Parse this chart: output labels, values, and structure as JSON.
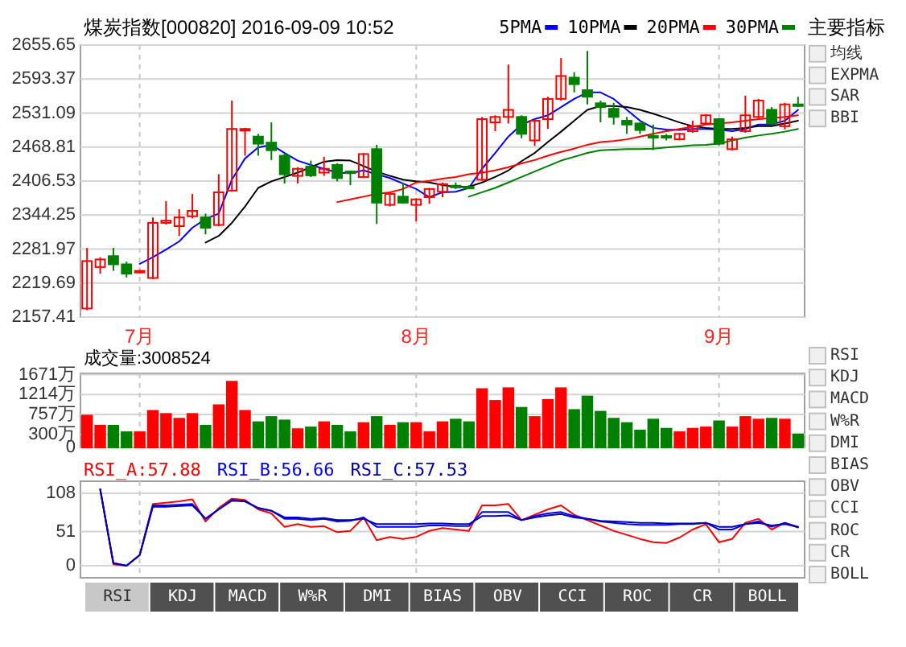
{
  "chart_data": [
    {
      "type": "candlestick",
      "title": "煤炭指数[000820] 2016-09-09 10:52",
      "categories": [
        null,
        null,
        null,
        null,
        "7月",
        null,
        null,
        null,
        null,
        null,
        null,
        null,
        null,
        null,
        null,
        null,
        null,
        null,
        null,
        null,
        null,
        null,
        null,
        null,
        null,
        "8月",
        null,
        null,
        null,
        null,
        null,
        null,
        null,
        null,
        null,
        null,
        null,
        null,
        null,
        null,
        null,
        null,
        null,
        null,
        null,
        null,
        null,
        null,
        "9月",
        null,
        null,
        null,
        null,
        null,
        null
      ],
      "ohlc": [
        [
          2173,
          2284,
          2170,
          2260
        ],
        [
          2249,
          2267,
          2237,
          2263
        ],
        [
          2269,
          2284,
          2242,
          2254
        ],
        [
          2254,
          2259,
          2230,
          2237
        ],
        [
          2239,
          2244,
          2237,
          2242
        ],
        [
          2229,
          2340,
          2227,
          2330
        ],
        [
          2330,
          2370,
          2327,
          2334
        ],
        [
          2324,
          2355,
          2306,
          2340
        ],
        [
          2342,
          2383,
          2338,
          2352
        ],
        [
          2340,
          2347,
          2309,
          2321
        ],
        [
          2326,
          2419,
          2324,
          2386
        ],
        [
          2389,
          2554,
          2387,
          2502
        ],
        [
          2500,
          2504,
          2453,
          2502
        ],
        [
          2488,
          2493,
          2453,
          2475
        ],
        [
          2477,
          2514,
          2445,
          2463
        ],
        [
          2453,
          2458,
          2402,
          2419
        ],
        [
          2416,
          2432,
          2402,
          2429
        ],
        [
          2433,
          2444,
          2414,
          2417
        ],
        [
          2422,
          2451,
          2416,
          2429
        ],
        [
          2436,
          2439,
          2406,
          2412
        ],
        [
          2424,
          2426,
          2399,
          2421
        ],
        [
          2414,
          2458,
          2412,
          2456
        ],
        [
          2465,
          2473,
          2328,
          2367
        ],
        [
          2363,
          2385,
          2360,
          2383
        ],
        [
          2378,
          2404,
          2365,
          2367
        ],
        [
          2363,
          2375,
          2333,
          2373
        ],
        [
          2377,
          2394,
          2365,
          2392
        ],
        [
          2387,
          2404,
          2377,
          2401
        ],
        [
          2398,
          2404,
          2392,
          2396
        ],
        [
          2396,
          2399,
          2392,
          2394
        ],
        [
          2409,
          2524,
          2407,
          2520
        ],
        [
          2514,
          2527,
          2498,
          2524
        ],
        [
          2524,
          2620,
          2512,
          2537
        ],
        [
          2524,
          2527,
          2485,
          2493
        ],
        [
          2481,
          2520,
          2471,
          2517
        ],
        [
          2520,
          2561,
          2502,
          2557
        ],
        [
          2557,
          2632,
          2554,
          2599
        ],
        [
          2596,
          2606,
          2569,
          2584
        ],
        [
          2573,
          2645,
          2547,
          2561
        ],
        [
          2549,
          2554,
          2514,
          2542
        ],
        [
          2539,
          2550,
          2510,
          2524
        ],
        [
          2517,
          2524,
          2493,
          2510
        ],
        [
          2512,
          2514,
          2493,
          2500
        ],
        [
          2489,
          2510,
          2463,
          2487
        ],
        [
          2489,
          2493,
          2481,
          2487
        ],
        [
          2483,
          2495,
          2481,
          2493
        ],
        [
          2498,
          2517,
          2495,
          2507
        ],
        [
          2512,
          2529,
          2510,
          2527
        ],
        [
          2520,
          2522,
          2472,
          2475
        ],
        [
          2465,
          2488,
          2463,
          2483
        ],
        [
          2498,
          2563,
          2495,
          2527
        ],
        [
          2524,
          2557,
          2520,
          2554
        ],
        [
          2537,
          2542,
          2510,
          2512
        ],
        [
          2507,
          2550,
          2501,
          2547
        ],
        [
          2547,
          2561,
          2542,
          2544
        ]
      ],
      "series": [
        {
          "name": "5PMA",
          "type": "line",
          "color": "#0000ff",
          "values": [
            null,
            null,
            null,
            null,
            2255,
            2267,
            2281,
            2296,
            2321,
            2337,
            2347,
            2409,
            2448,
            2468,
            2473,
            2458,
            2444,
            2436,
            2429,
            2422,
            2421,
            2426,
            2419,
            2412,
            2402,
            2392,
            2377,
            2386,
            2387,
            2394,
            2429,
            2458,
            2488,
            2510,
            2520,
            2527,
            2542,
            2557,
            2569,
            2569,
            2557,
            2537,
            2517,
            2504,
            2501,
            2500,
            2502,
            2502,
            2501,
            2498,
            2502,
            2510,
            2510,
            2517,
            2537
          ]
        },
        {
          "name": "10PMA",
          "type": "line",
          "color": "#000000",
          "values": [
            null,
            null,
            null,
            null,
            null,
            null,
            null,
            null,
            null,
            2294,
            2306,
            2330,
            2360,
            2394,
            2406,
            2414,
            2422,
            2432,
            2442,
            2445,
            2444,
            2434,
            2424,
            2416,
            2409,
            2406,
            2404,
            2399,
            2396,
            2396,
            2404,
            2414,
            2426,
            2443,
            2458,
            2478,
            2497,
            2517,
            2537,
            2544,
            2544,
            2542,
            2537,
            2530,
            2522,
            2514,
            2507,
            2504,
            2502,
            2502,
            2504,
            2507,
            2507,
            2512,
            2517
          ]
        },
        {
          "name": "20PMA",
          "type": "line",
          "color": "#ff0000",
          "values": [
            null,
            null,
            null,
            null,
            null,
            null,
            null,
            null,
            null,
            null,
            null,
            null,
            null,
            null,
            null,
            null,
            null,
            null,
            null,
            2368,
            2373,
            2378,
            2383,
            2386,
            2392,
            2404,
            2407,
            2411,
            2414,
            2419,
            2422,
            2426,
            2432,
            2439,
            2445,
            2453,
            2460,
            2466,
            2473,
            2478,
            2480,
            2483,
            2488,
            2493,
            2498,
            2502,
            2506,
            2510,
            2512,
            2514,
            2517,
            2520,
            2522,
            2524,
            2527
          ]
        },
        {
          "name": "30PMA",
          "type": "line",
          "color": "#008000",
          "values": [
            null,
            null,
            null,
            null,
            null,
            null,
            null,
            null,
            null,
            null,
            null,
            null,
            null,
            null,
            null,
            null,
            null,
            null,
            null,
            null,
            null,
            null,
            null,
            null,
            null,
            null,
            null,
            null,
            null,
            2378,
            2386,
            2394,
            2404,
            2414,
            2424,
            2434,
            2444,
            2451,
            2458,
            2463,
            2464,
            2465,
            2465,
            2466,
            2468,
            2470,
            2472,
            2473,
            2475,
            2481,
            2486,
            2490,
            2493,
            2497,
            2502
          ]
        }
      ],
      "ylim": [
        2157.41,
        2655.65
      ],
      "yticks": [
        2157.41,
        2219.69,
        2281.97,
        2344.25,
        2406.53,
        2468.81,
        2531.09,
        2593.37,
        2655.65
      ],
      "grid": true,
      "legend": "top right",
      "annotations": [
        "主要指标",
        "均线",
        "EXPMA",
        "SAR",
        "BBI"
      ]
    },
    {
      "type": "bar",
      "categories": [
        null,
        null,
        null,
        null,
        null,
        null,
        null,
        null,
        null,
        null,
        null,
        null,
        null,
        null,
        null,
        null,
        null,
        null,
        null,
        null,
        null,
        null,
        null,
        null,
        null,
        null,
        null,
        null,
        null,
        null,
        null,
        null,
        null,
        null,
        null,
        null,
        null,
        null,
        null,
        null,
        null,
        null,
        null,
        null,
        null,
        null,
        null,
        null,
        null,
        null,
        null,
        null,
        null,
        null,
        null
      ],
      "values": [
        730,
        500,
        500,
        350,
        350,
        840,
        770,
        660,
        770,
        500,
        970,
        1510,
        840,
        580,
        700,
        620,
        420,
        460,
        580,
        500,
        350,
        560,
        700,
        500,
        560,
        560,
        350,
        580,
        640,
        580,
        1340,
        1070,
        1360,
        910,
        700,
        1090,
        1360,
        860,
        1170,
        820,
        660,
        560,
        390,
        640,
        430,
        350,
        430,
        460,
        600,
        460,
        700,
        640,
        660,
        640,
        300
      ],
      "colors": [
        "#ff0000",
        "#ff0000",
        "#008000",
        "#008000",
        "#ff0000",
        "#ff0000",
        "#ff0000",
        "#ff0000",
        "#ff0000",
        "#008000",
        "#ff0000",
        "#ff0000",
        "#ff0000",
        "#008000",
        "#008000",
        "#008000",
        "#ff0000",
        "#008000",
        "#ff0000",
        "#008000",
        "#008000",
        "#ff0000",
        "#008000",
        "#ff0000",
        "#008000",
        "#ff0000",
        "#ff0000",
        "#ff0000",
        "#008000",
        "#008000",
        "#ff0000",
        "#ff0000",
        "#ff0000",
        "#008000",
        "#ff0000",
        "#ff0000",
        "#ff0000",
        "#008000",
        "#008000",
        "#008000",
        "#008000",
        "#008000",
        "#008000",
        "#008000",
        "#008000",
        "#ff0000",
        "#ff0000",
        "#ff0000",
        "#008000",
        "#ff0000",
        "#ff0000",
        "#ff0000",
        "#008000",
        "#ff0000",
        "#008000"
      ],
      "ylim": [
        0,
        1700
      ],
      "yticks": [
        0,
        {
          "value": 300,
          "label": "300万"
        },
        {
          "value": 757,
          "label": "757万"
        },
        {
          "value": 1214,
          "label": "1214万"
        },
        {
          "value": 1671,
          "label": "1671万"
        }
      ],
      "grid": true,
      "tick_labels": "y",
      "annotations": [
        "成交量:3008524"
      ]
    },
    {
      "type": "line",
      "categories": [
        null,
        null,
        null,
        null,
        null,
        null,
        null,
        null,
        null,
        null,
        null,
        null,
        null,
        null,
        null,
        null,
        null,
        null,
        null,
        null,
        null,
        null,
        null,
        null,
        null,
        null,
        null,
        null,
        null,
        null,
        null,
        null,
        null,
        null,
        null,
        null,
        null,
        null,
        null,
        null,
        null,
        null,
        null,
        null,
        null,
        null,
        null,
        null,
        null,
        null,
        null,
        null,
        null,
        null,
        null
      ],
      "series": [
        {
          "name": "RSI_A:57.88",
          "color": "#ff0000",
          "values": [
            null,
            114,
            2,
            0,
            16,
            92,
            94,
            96,
            99,
            66,
            86,
            100,
            98,
            84,
            78,
            58,
            62,
            58,
            59,
            50,
            52,
            72,
            38,
            43,
            40,
            43,
            52,
            56,
            54,
            52,
            90,
            90,
            92,
            68,
            76,
            84,
            90,
            76,
            68,
            60,
            52,
            46,
            40,
            35,
            34,
            42,
            54,
            62,
            35,
            40,
            64,
            70,
            54,
            64,
            58
          ]
        },
        {
          "name": "RSI_B:56.66",
          "color": "#0000ff",
          "values": [
            null,
            114,
            4,
            0,
            16,
            90,
            90,
            91,
            92,
            70,
            84,
            98,
            96,
            86,
            82,
            70,
            70,
            68,
            70,
            66,
            67,
            72,
            58,
            58,
            58,
            58,
            60,
            60,
            59,
            59,
            80,
            80,
            80,
            68,
            74,
            78,
            80,
            74,
            70,
            66,
            64,
            62,
            61,
            61,
            61,
            62,
            62,
            64,
            54,
            54,
            62,
            66,
            58,
            64,
            57
          ]
        },
        {
          "name": "RSI_C:57.53",
          "color": "#0000b4",
          "values": [
            null,
            114,
            4,
            0,
            16,
            88,
            88,
            89,
            90,
            70,
            84,
            97,
            96,
            86,
            82,
            72,
            72,
            70,
            71,
            68,
            68,
            70,
            62,
            62,
            62,
            62,
            63,
            63,
            62,
            62,
            74,
            74,
            75,
            68,
            72,
            75,
            77,
            72,
            70,
            67,
            66,
            65,
            64,
            64,
            63,
            63,
            63,
            64,
            58,
            58,
            62,
            64,
            60,
            62,
            58
          ]
        }
      ],
      "ylim": [
        -18,
        126
      ],
      "yticks": [
        0,
        51,
        108
      ],
      "grid": true,
      "tick_labels": "y",
      "legend": "top left",
      "annotations": [
        "RSI",
        "KDJ",
        "MACD",
        "W%R",
        "DMI",
        "BIAS",
        "OBV",
        "CCI",
        "ROC",
        "CR",
        "BOLL",
        "RSI",
        "KDJ",
        "MACD",
        "W%R",
        "DMI",
        "BIAS",
        "OBV",
        "CCI",
        "ROC",
        "CR",
        "BOLL"
      ]
    }
  ]
}
